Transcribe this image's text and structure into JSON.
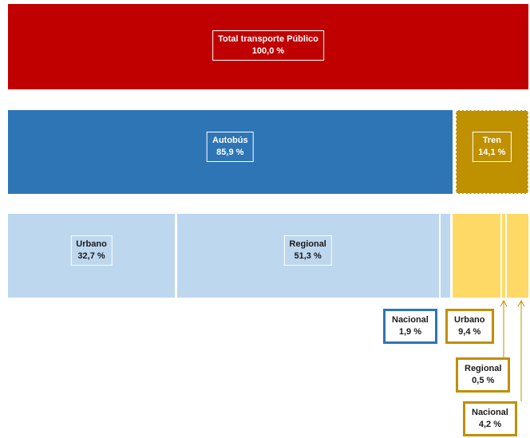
{
  "levels": [
    [
      {
        "name": "Total transporte Público",
        "value": 100,
        "value_label": "100,0 %",
        "color": "#c00000"
      }
    ],
    [
      {
        "name": "Autobús",
        "value": 85.9,
        "value_label": "85,9 %",
        "color": "#2e75b6"
      },
      {
        "name": "Tren",
        "value": 14.1,
        "value_label": "14,1 %",
        "color": "#bf9000"
      }
    ],
    [
      {
        "name": "Urbano",
        "value": 32.7,
        "value_label": "32,7 %",
        "color": "#bdd7ee"
      },
      {
        "name": "Regional",
        "value": 51.3,
        "value_label": "51,3 %",
        "color": "#bdd7ee"
      },
      {
        "name": "Nacional",
        "value": 1.9,
        "value_label": "1,9 %",
        "color": "#bdd7ee"
      },
      {
        "name": "Urbano",
        "value": 9.4,
        "value_label": "9,4 %",
        "color": "#ffd966"
      },
      {
        "name": "Regional",
        "value": 0.5,
        "value_label": "0,5 %",
        "color": "#ffd966"
      },
      {
        "name": "Nacional",
        "value": 4.2,
        "value_label": "4,2 %",
        "color": "#ffd966"
      }
    ]
  ]
}
